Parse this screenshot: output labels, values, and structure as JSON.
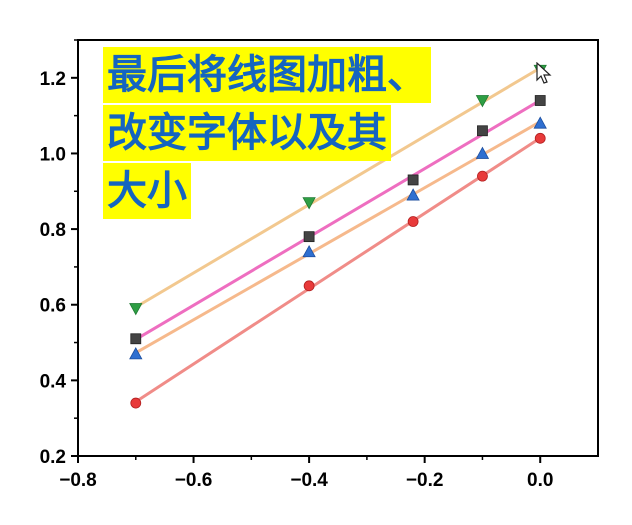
{
  "banner": {
    "lines": [
      "最后将线图加粗、",
      "改变字体以及其",
      "大小"
    ]
  },
  "chart_data": {
    "type": "line",
    "title": "",
    "xlabel": "",
    "ylabel": "",
    "xlim": [
      -0.8,
      0.1
    ],
    "ylim": [
      0.2,
      1.3
    ],
    "xticks": [
      "−0.8",
      "−0.6",
      "−0.4",
      "−0.2",
      "0.0"
    ],
    "yticks": [
      "0.2",
      "0.4",
      "0.6",
      "0.8",
      "1.0",
      "1.2"
    ],
    "grid": false,
    "series": [
      {
        "marker": "triangle-down",
        "marker_color": "#2e9e44",
        "line_color": "#f2c88f",
        "x": [
          -0.7,
          -0.4,
          -0.1,
          0.0
        ],
        "y": [
          0.59,
          0.87,
          1.14,
          1.22
        ]
      },
      {
        "marker": "square",
        "marker_color": "#444444",
        "line_color": "#ee6ec0",
        "x": [
          -0.7,
          -0.4,
          -0.22,
          -0.1,
          0.0
        ],
        "y": [
          0.51,
          0.78,
          0.93,
          1.06,
          1.14
        ]
      },
      {
        "marker": "triangle-up",
        "marker_color": "#2f6fd0",
        "line_color": "#f6b98c",
        "x": [
          -0.7,
          -0.4,
          -0.22,
          -0.1,
          0.0
        ],
        "y": [
          0.47,
          0.74,
          0.89,
          1.0,
          1.08
        ]
      },
      {
        "marker": "circle",
        "marker_color": "#e83a3a",
        "line_color": "#f08c88",
        "x": [
          -0.7,
          -0.4,
          -0.22,
          -0.1,
          0.0
        ],
        "y": [
          0.34,
          0.65,
          0.82,
          0.94,
          1.04
        ]
      }
    ]
  }
}
